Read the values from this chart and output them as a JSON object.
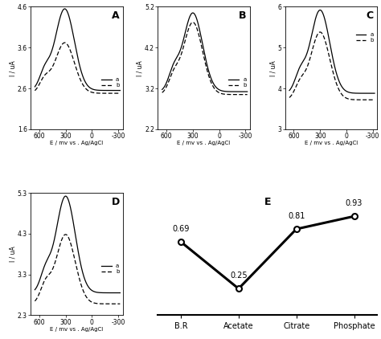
{
  "panels": {
    "A": {
      "ylim": [
        1.6,
        4.6
      ],
      "yticks": [
        1.6,
        2.6,
        3.6,
        4.6
      ],
      "peak_x": 310,
      "peak_a": 4.55,
      "peak_b": 3.72,
      "baseline_a": 2.55,
      "baseline_b": 2.48,
      "second_peak_x": 540,
      "second_peak_a": 2.95,
      "second_peak_b": 2.78,
      "label": "A"
    },
    "B": {
      "ylim": [
        2.2,
        5.2
      ],
      "yticks": [
        2.2,
        3.2,
        4.2,
        5.2
      ],
      "peak_x": 300,
      "peak_a": 5.05,
      "peak_b": 4.82,
      "baseline_a": 3.12,
      "baseline_b": 3.05,
      "second_peak_x": 520,
      "second_peak_a": 3.55,
      "second_peak_b": 3.42,
      "label": "B"
    },
    "C": {
      "ylim": [
        3.0,
        6.0
      ],
      "yticks": [
        3,
        4,
        5,
        6
      ],
      "peak_x": 300,
      "peak_a": 5.92,
      "peak_b": 5.38,
      "baseline_a": 3.88,
      "baseline_b": 3.72,
      "second_peak_x": 530,
      "second_peak_a": 4.3,
      "second_peak_b": 4.05,
      "label": "C"
    },
    "D": {
      "ylim": [
        2.3,
        5.3
      ],
      "yticks": [
        2.3,
        3.3,
        4.3,
        5.3
      ],
      "peak_x": 300,
      "peak_a": 5.22,
      "peak_b": 4.28,
      "baseline_a": 2.85,
      "baseline_b": 2.58,
      "second_peak_x": 530,
      "second_peak_a": 3.3,
      "second_peak_b": 3.0,
      "label": "D"
    }
  },
  "E": {
    "x_labels": [
      "B.R",
      "Acetate",
      "Citrate",
      "Phosphate"
    ],
    "y_values": [
      0.69,
      0.25,
      0.81,
      0.93
    ],
    "label": "E"
  },
  "xlim_left": 700,
  "xlim_right": -350,
  "xticks": [
    600,
    300,
    0,
    -300
  ],
  "xlabel": "E / mv vs . Ag/AgCl",
  "ylabel": "I / uA"
}
